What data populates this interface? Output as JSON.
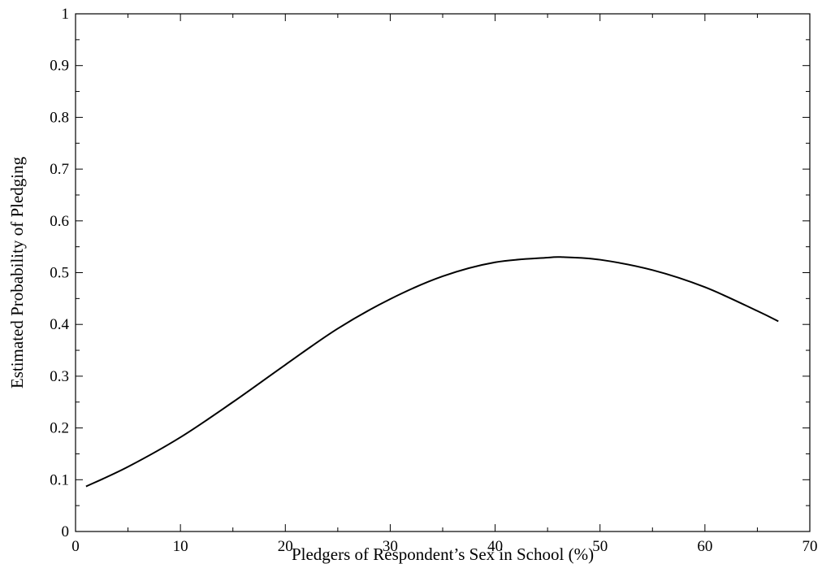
{
  "chart_data": {
    "type": "line",
    "xlabel": "Pledgers of Respondent’s Sex in School (%)",
    "ylabel": "Estimated Probability of Pledging",
    "xlim": [
      0,
      70
    ],
    "ylim": [
      0,
      1
    ],
    "x_ticks": [
      0,
      10,
      20,
      30,
      40,
      50,
      60,
      70
    ],
    "x_tick_labels": [
      "0",
      "10",
      "20",
      "30",
      "40",
      "50",
      "60",
      "70"
    ],
    "y_ticks": [
      0,
      0.1,
      0.2,
      0.3,
      0.4,
      0.5,
      0.6,
      0.7,
      0.8,
      0.9,
      1
    ],
    "y_tick_labels": [
      "0",
      "0.1",
      "0.2",
      "0.3",
      "0.4",
      "0.5",
      "0.6",
      "0.7",
      "0.8",
      "0.9",
      "1"
    ],
    "grid": false,
    "series": [
      {
        "color": "#000000",
        "x": [
          1,
          5,
          10,
          15,
          20,
          25,
          30,
          35,
          40,
          45,
          46.5,
          50,
          55,
          60,
          65,
          67
        ],
        "y": [
          0.087,
          0.125,
          0.182,
          0.25,
          0.322,
          0.392,
          0.449,
          0.493,
          0.52,
          0.529,
          0.53,
          0.525,
          0.505,
          0.472,
          0.426,
          0.406
        ]
      }
    ]
  }
}
